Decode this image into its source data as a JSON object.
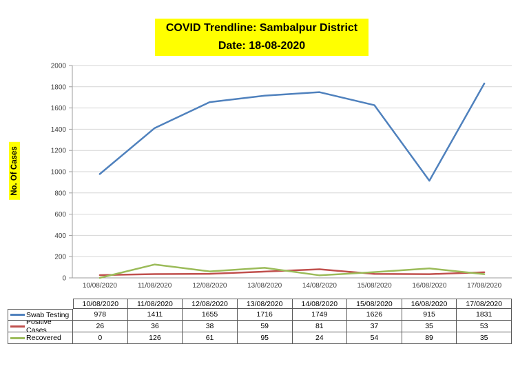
{
  "title": {
    "line1": "COVID Trendline: Sambalpur District",
    "line2": "Date: 18-08-2020"
  },
  "colors": {
    "title_highlight": "#FFFF00",
    "swab_testing": "#4F81BD",
    "positive_cases": "#C0504D",
    "recovered": "#9BBB59",
    "gridline": "#d6d6d6",
    "axis": "#9e9e9e"
  },
  "chart_data": {
    "type": "line",
    "title": "COVID Trendline: Sambalpur District  Date: 18-08-2020",
    "xlabel": "",
    "ylabel": "No. Of Cases",
    "categories": [
      "10/08/2020",
      "11/08/2020",
      "12/08/2020",
      "13/08/2020",
      "14/08/2020",
      "15/08/2020",
      "16/08/2020",
      "17/08/2020"
    ],
    "series": [
      {
        "name": "Swab Testing",
        "color": "#4F81BD",
        "values": [
          978,
          1411,
          1655,
          1716,
          1749,
          1626,
          915,
          1831
        ]
      },
      {
        "name": "Positive Cases",
        "color": "#C0504D",
        "values": [
          26,
          36,
          38,
          59,
          81,
          37,
          35,
          53
        ]
      },
      {
        "name": "Recovered",
        "color": "#9BBB59",
        "values": [
          0,
          126,
          61,
          95,
          24,
          54,
          89,
          35
        ]
      }
    ],
    "ylim": [
      0,
      2000
    ],
    "y_tick_step": 200,
    "grid": true,
    "legend_position": "data-table-left-column"
  }
}
